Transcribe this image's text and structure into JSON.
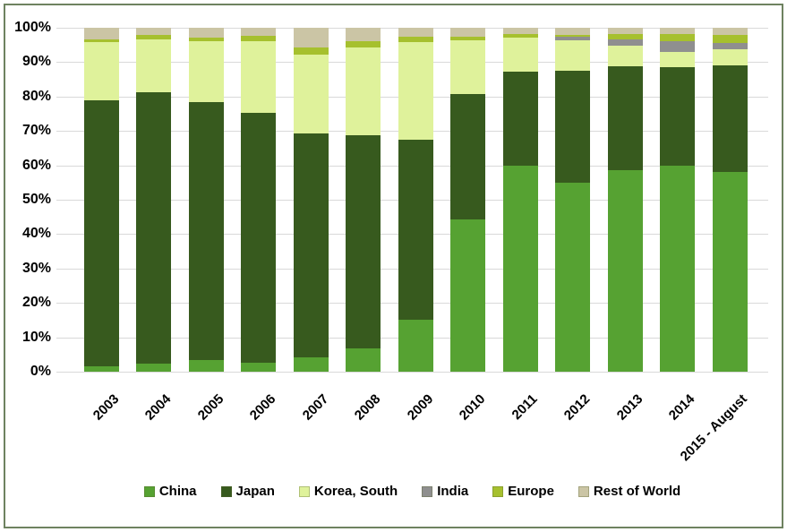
{
  "figure": {
    "background_color": "#FFFFFF",
    "border_color": "#6E8260",
    "gridline_color": "#D9D9D9",
    "text_color": "#000000"
  },
  "chart_data": {
    "type": "bar",
    "subtype": "stacked-100-percent",
    "title": "",
    "xlabel": "",
    "ylabel": "",
    "ylim": [
      0,
      100
    ],
    "grid": true,
    "legend_position": "bottom",
    "y_ticks": [
      "0%",
      "10%",
      "20%",
      "30%",
      "40%",
      "50%",
      "60%",
      "70%",
      "80%",
      "90%",
      "100%"
    ],
    "categories": [
      "2003",
      "2004",
      "2005",
      "2006",
      "2007",
      "2008",
      "2009",
      "2010",
      "2011",
      "2012",
      "2013",
      "2014",
      "2015 - August"
    ],
    "series": [
      {
        "name": "China",
        "color": "#56A232",
        "values": [
          1.5,
          2.3,
          3.5,
          2.6,
          4.2,
          6.8,
          15.0,
          44.4,
          60.0,
          55.0,
          58.5,
          59.8,
          58.0
        ]
      },
      {
        "name": "Japan",
        "color": "#375A1E",
        "values": [
          77.5,
          79.0,
          74.9,
          72.7,
          65.0,
          62.0,
          52.5,
          36.3,
          27.3,
          32.6,
          30.3,
          28.8,
          31.0
        ]
      },
      {
        "name": "Korea, South",
        "color": "#DFF29B",
        "values": [
          16.9,
          15.3,
          17.7,
          20.9,
          22.9,
          25.4,
          28.4,
          15.7,
          9.8,
          8.8,
          6.0,
          4.3,
          4.8
        ]
      },
      {
        "name": "India",
        "color": "#8F8F8F",
        "values": [
          0,
          0,
          0,
          0,
          0,
          0,
          0,
          0,
          0,
          1.0,
          1.7,
          3.3,
          1.7
        ]
      },
      {
        "name": "Europe",
        "color": "#A6C02E",
        "values": [
          0.6,
          1.3,
          1.1,
          1.5,
          2.3,
          1.8,
          1.6,
          1.0,
          1.0,
          0.5,
          1.7,
          2.0,
          2.3
        ]
      },
      {
        "name": "Rest of World",
        "color": "#CBC5A5",
        "values": [
          3.5,
          2.1,
          2.8,
          2.3,
          5.6,
          4.0,
          2.5,
          2.6,
          1.9,
          2.1,
          1.8,
          1.8,
          2.2
        ]
      }
    ]
  }
}
